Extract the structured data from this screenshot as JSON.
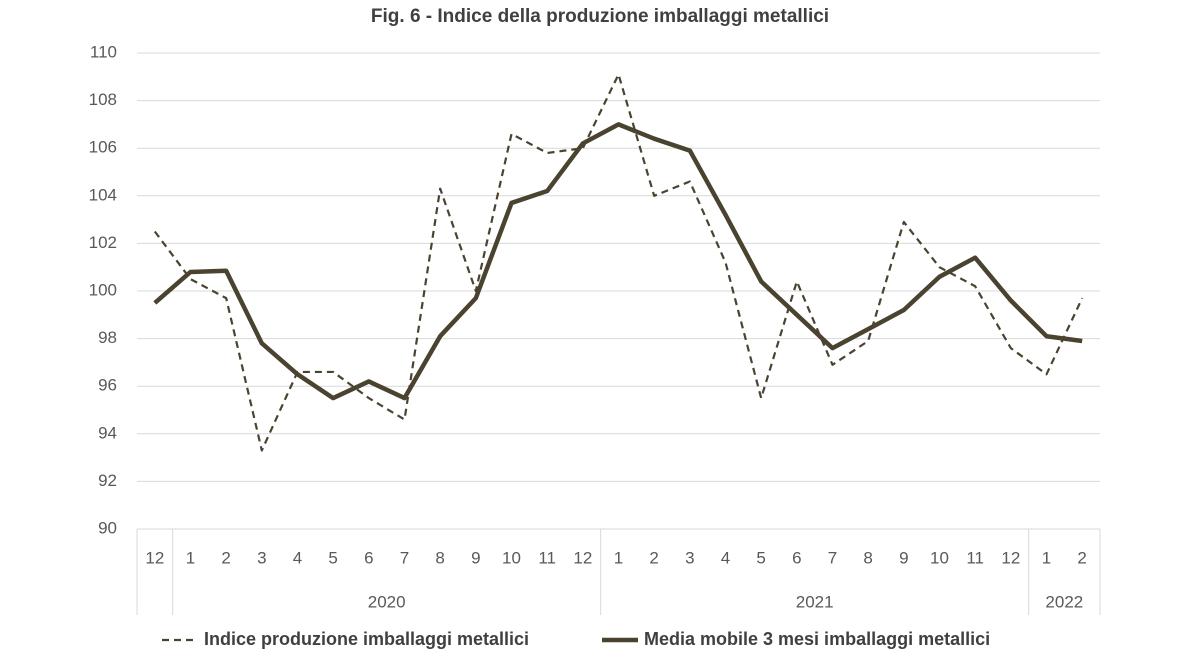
{
  "chart_data": {
    "type": "line",
    "title": "Fig. 6 - Indice della produzione imballaggi metallici",
    "category_groups": [
      {
        "label": null,
        "categories": [
          "12"
        ]
      },
      {
        "label": "2020",
        "categories": [
          "1",
          "2",
          "3",
          "4",
          "5",
          "6",
          "7",
          "8",
          "9",
          "10",
          "11",
          "12"
        ]
      },
      {
        "label": "2021",
        "categories": [
          "1",
          "2",
          "3",
          "4",
          "5",
          "6",
          "7",
          "8",
          "9",
          "10",
          "11",
          "12"
        ]
      },
      {
        "label": "2022",
        "categories": [
          "1",
          "2"
        ]
      }
    ],
    "series": [
      {
        "name": "Indice produzione imballaggi metallici",
        "color": "#4a4330",
        "style": "dashed",
        "values": [
          102.5,
          100.5,
          99.7,
          93.3,
          96.6,
          96.6,
          95.5,
          94.6,
          104.3,
          100.0,
          106.6,
          105.8,
          106.0,
          109.1,
          104.0,
          104.6,
          101.2,
          95.5,
          100.4,
          96.9,
          97.9,
          102.9,
          101.0,
          100.2,
          97.6,
          96.5,
          99.7
        ]
      },
      {
        "name": "Media mobile 3 mesi imballaggi metallici",
        "color": "#4a4330",
        "style": "solid",
        "values": [
          99.5,
          100.8,
          100.85,
          97.8,
          96.5,
          95.5,
          96.2,
          95.5,
          98.1,
          99.7,
          103.7,
          104.2,
          106.2,
          107.0,
          106.4,
          105.9,
          103.2,
          100.4,
          99.0,
          97.6,
          98.4,
          99.2,
          100.6,
          101.4,
          99.6,
          98.1,
          97.9
        ]
      }
    ],
    "ylim": [
      90,
      110
    ],
    "yticks": [
      90,
      92,
      94,
      96,
      98,
      100,
      102,
      104,
      106,
      108,
      110
    ],
    "grid": true
  }
}
